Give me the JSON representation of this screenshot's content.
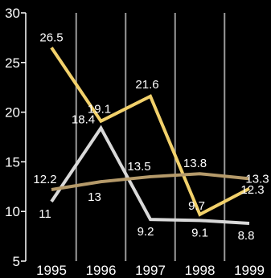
{
  "chart_data": {
    "type": "line",
    "title": "",
    "xlabel": "",
    "ylabel": "",
    "x": [
      "1995",
      "1996",
      "1997",
      "1998",
      "1999"
    ],
    "ylim": [
      5,
      30
    ],
    "yticks": [
      "5",
      "10",
      "15",
      "20",
      "25",
      "30"
    ],
    "grid": {
      "vertical": true,
      "horizontal": false
    },
    "legend": "none",
    "colors": {
      "background": "#000000",
      "gridline": "#9a9a9a",
      "axis": "#ffffff",
      "text": "#ffffff"
    },
    "series": [
      {
        "color": "#f2d16b",
        "values": [
          26.5,
          19.1,
          21.6,
          9.7,
          12.3
        ],
        "labels": [
          "26.5",
          "19.1",
          "21.6",
          "9.7",
          "12.3"
        ]
      },
      {
        "color": "#d9d9d9",
        "values": [
          11,
          18.4,
          9.2,
          9.1,
          8.8
        ],
        "labels": [
          "11",
          "18.4",
          "9.2",
          "9.1",
          "8.8"
        ]
      },
      {
        "color": "#b59a6a",
        "values": [
          12.2,
          13,
          13.5,
          13.8,
          13.3
        ],
        "labels": [
          "12.2",
          "13",
          "13.5",
          "13.8",
          "13.3"
        ]
      }
    ]
  }
}
